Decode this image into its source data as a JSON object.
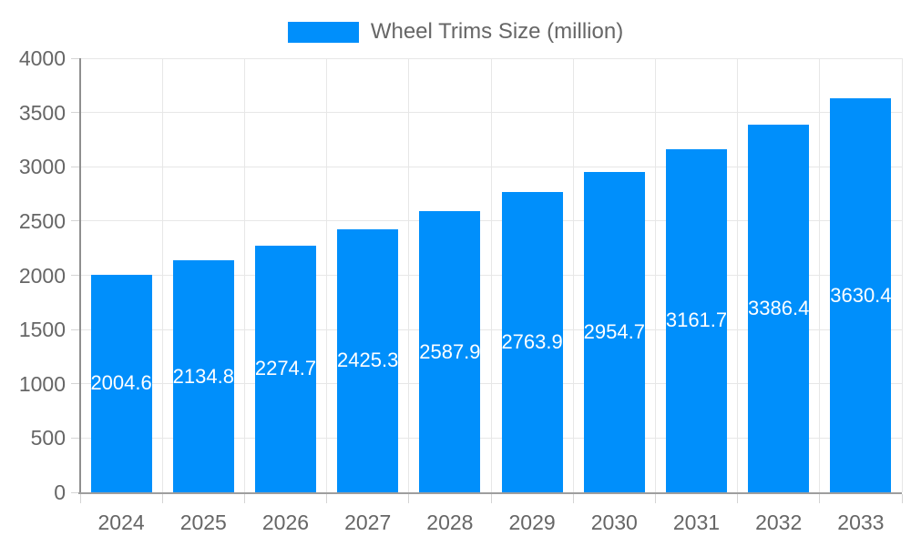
{
  "chart_data": {
    "type": "bar",
    "title": "",
    "categories": [
      "2024",
      "2025",
      "2026",
      "2027",
      "2028",
      "2029",
      "2030",
      "2031",
      "2032",
      "2033"
    ],
    "series": [
      {
        "name": "Wheel Trims Size (million)",
        "values": [
          2004.6,
          2134.8,
          2274.7,
          2425.3,
          2587.9,
          2763.9,
          2954.7,
          3161.7,
          3386.4,
          3630.4
        ]
      }
    ],
    "xlabel": "",
    "ylabel": "",
    "ylim": [
      0,
      4000
    ],
    "ytick_step": 500,
    "ytick_labels": [
      "0",
      "500",
      "1000",
      "1500",
      "2000",
      "2500",
      "3000",
      "3500",
      "4000"
    ],
    "grid": true,
    "legend_position": "top",
    "bar_color": "#008FFB",
    "value_label_color": "#ffffff",
    "axis_label_color": "#666666"
  }
}
